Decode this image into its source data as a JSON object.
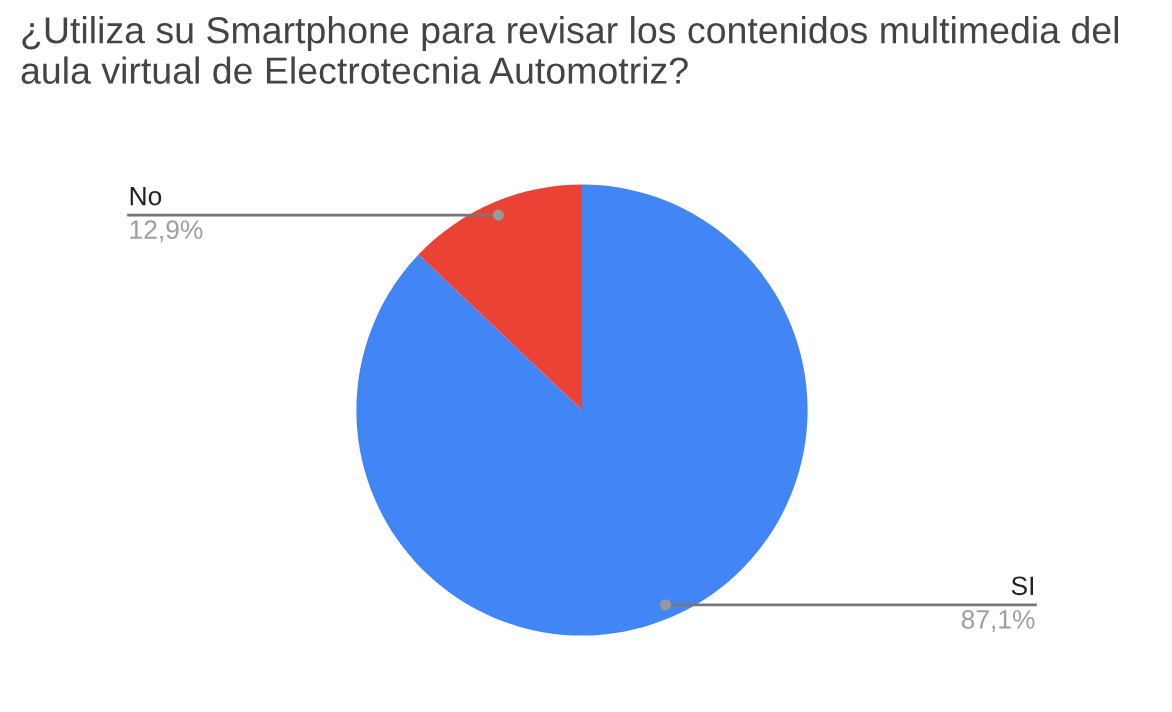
{
  "chart_data": {
    "type": "pie",
    "title": "¿Utiliza su Smartphone para revisar los contenidos multimedia del aula virtual de Electrotecnia Automotriz?",
    "categories": [
      "SI",
      "No"
    ],
    "values": [
      87.1,
      12.9
    ],
    "value_labels": [
      "87,1%",
      "12,9%"
    ],
    "colors": [
      "#4285f4",
      "#ea4335"
    ],
    "legend": false
  }
}
